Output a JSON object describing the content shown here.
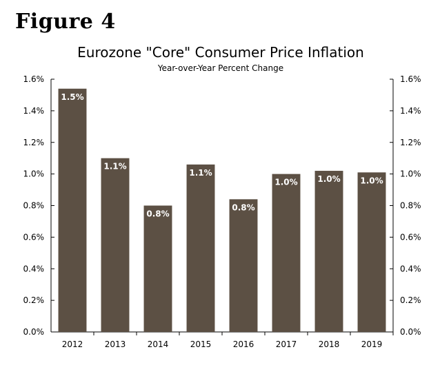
{
  "figure_label": "Figure 4",
  "colors": {
    "bar": "#5c5044",
    "axis": "#000000",
    "label": "#ffffff"
  },
  "chart_data": {
    "type": "bar",
    "title": "Eurozone \"Core\" Consumer Price Inflation",
    "subtitle": "Year-over-Year Percent Change",
    "categories": [
      "2012",
      "2013",
      "2014",
      "2015",
      "2016",
      "2017",
      "2018",
      "2019"
    ],
    "values": [
      1.54,
      1.1,
      0.8,
      1.06,
      0.84,
      1.0,
      1.02,
      1.01
    ],
    "data_labels": [
      "1.5%",
      "1.1%",
      "0.8%",
      "1.1%",
      "0.8%",
      "1.0%",
      "1.0%",
      "1.0%"
    ],
    "ylim": [
      0,
      1.6
    ],
    "yticks": [
      "0.0%",
      "0.2%",
      "0.4%",
      "0.6%",
      "0.8%",
      "1.0%",
      "1.2%",
      "1.4%",
      "1.6%"
    ],
    "y_axes": "both",
    "grid": false,
    "legend": "none"
  }
}
